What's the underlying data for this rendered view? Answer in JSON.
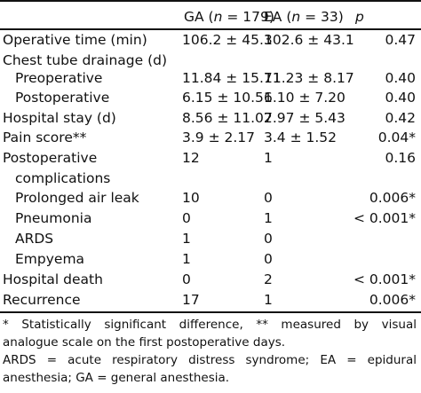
{
  "header": {
    "col_ga": "GA (n = 179)",
    "col_ea": "EA (n = 33)",
    "col_p": "p"
  },
  "rows": [
    {
      "label": "Operative time (min)",
      "ga": "106.2 ± 45.3",
      "ea": "102.6 ± 43.1",
      "p": "0.47"
    },
    {
      "label": "Chest tube drainage (d)",
      "ga": "",
      "ea": "",
      "p": ""
    },
    {
      "label": "Preoperative",
      "ga": "11.84 ± 15.71",
      "ea": "11.23 ± 8.17",
      "p": "0.40"
    },
    {
      "label": "Postoperative",
      "ga": "6.15 ± 10.51",
      "ea": "6.10 ± 7.20",
      "p": "0.40"
    },
    {
      "label": "Hospital stay (d)",
      "ga": "8.56 ± 11.02",
      "ea": "7.97 ± 5.43",
      "p": "0.42"
    },
    {
      "label": "Pain score**",
      "ga": "3.9 ± 2.17",
      "ea": "3.4 ± 1.52",
      "p": "0.04*"
    },
    {
      "label": "Postoperative",
      "ga": "12",
      "ea": "1",
      "p": "0.16"
    },
    {
      "label": "complications",
      "ga": "",
      "ea": "",
      "p": ""
    },
    {
      "label": "Prolonged air leak",
      "ga": "10",
      "ea": "0",
      "p": "0.006*"
    },
    {
      "label": "Pneumonia",
      "ga": "0",
      "ea": "1",
      "p": "< 0.001*"
    },
    {
      "label": "ARDS",
      "ga": "1",
      "ea": "0",
      "p": ""
    },
    {
      "label": "Empyema",
      "ga": "1",
      "ea": "0",
      "p": ""
    },
    {
      "label": "Hospital death",
      "ga": "0",
      "ea": "2",
      "p": "< 0.001*"
    },
    {
      "label": "Recurrence",
      "ga": "17",
      "ea": "1",
      "p": "0.006*"
    }
  ],
  "footnotes": {
    "line1": "* Statistically significant difference, ** measured by visual",
    "line2": "analogue scale on the first postoperative days.",
    "line3": "ARDS = acute respiratory distress syndrome; EA = epidural",
    "line4": "anesthesia; GA = general anesthesia."
  }
}
